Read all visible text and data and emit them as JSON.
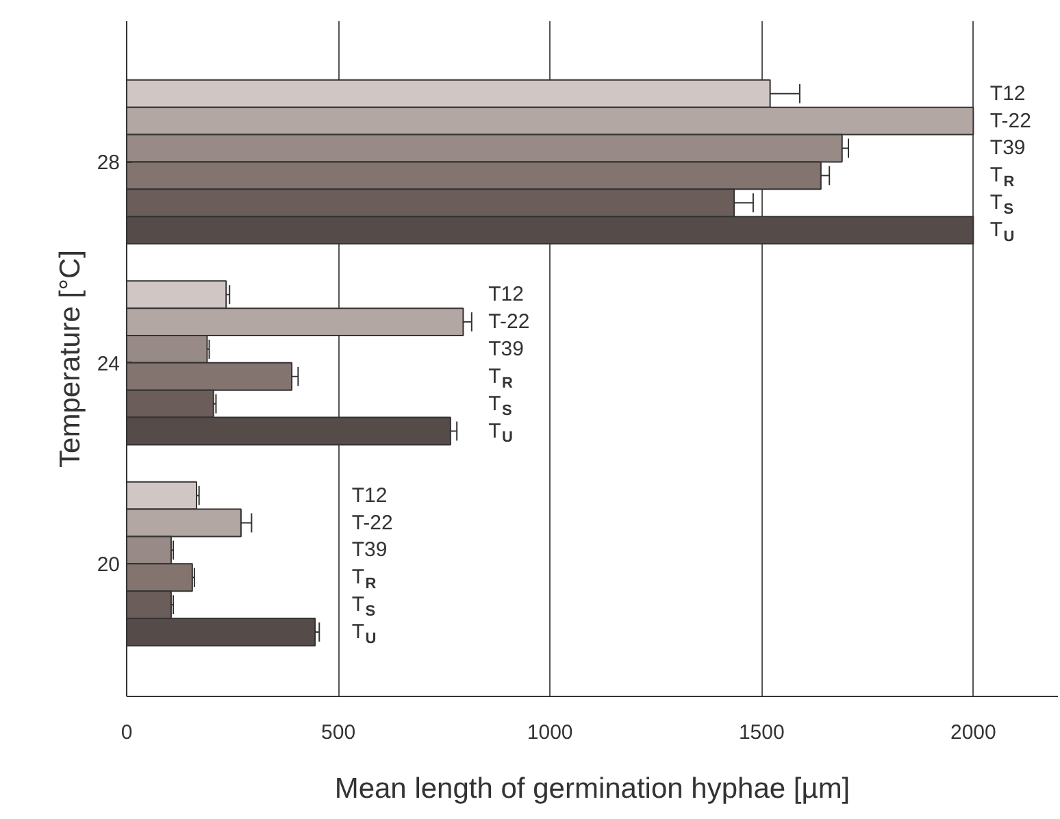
{
  "chart_data": {
    "type": "bar",
    "orientation": "horizontal",
    "xlabel": "Mean length of germination hyphae [µm]",
    "ylabel": "Temperature [°C]",
    "categories": [
      "28",
      "24",
      "20"
    ],
    "series": [
      {
        "name": "T12",
        "color": "#d0c7c4",
        "values": [
          1520,
          235,
          165
        ],
        "errors": [
          70,
          8,
          6
        ]
      },
      {
        "name": "T-22",
        "color": "#b3a7a3",
        "values": [
          2000,
          795,
          270
        ],
        "errors": [
          null,
          20,
          25
        ]
      },
      {
        "name": "T39",
        "color": "#988a86",
        "values": [
          1690,
          190,
          105
        ],
        "errors": [
          15,
          5,
          5
        ]
      },
      {
        "name": "T$_{R}$",
        "color": "#837470",
        "values": [
          1640,
          390,
          155
        ],
        "errors": [
          20,
          15,
          5
        ]
      },
      {
        "name": "T$_{S}$",
        "color": "#6b5d5a",
        "values": [
          1435,
          205,
          105
        ],
        "errors": [
          45,
          6,
          5
        ]
      },
      {
        "name": "T$_{U}$",
        "color": "#554b49",
        "values": [
          2000,
          765,
          445
        ],
        "errors": [
          null,
          15,
          10
        ]
      }
    ],
    "xlim": [
      0,
      2200
    ],
    "xticks": [
      0,
      500,
      1000,
      1500,
      2000
    ],
    "grid": "x"
  }
}
